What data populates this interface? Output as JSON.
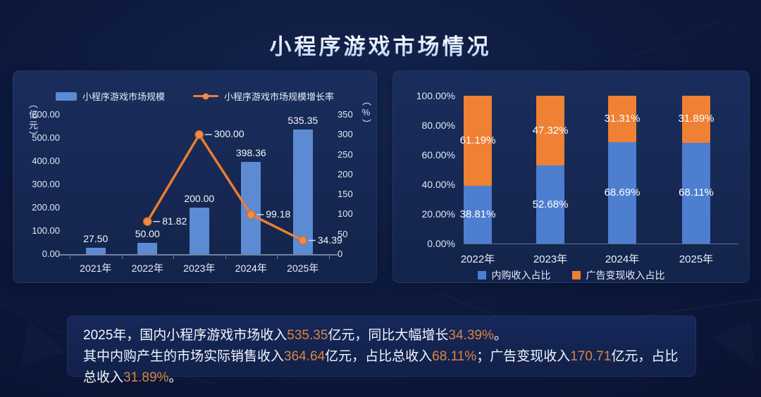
{
  "page": {
    "title": "小程序游戏市场情况"
  },
  "colors": {
    "combo_bar_blue": "#5c8bd4",
    "line_orange": "#ed7d31",
    "marker_orange": "#f08c46",
    "stack_blue": "#4d7ecf",
    "stack_orange": "#ee8133",
    "highlight_text": "#dd8440",
    "tick_text": "#dfe8f6"
  },
  "chart_data": [
    {
      "type": "bar+line",
      "categories": [
        "2021年",
        "2022年",
        "2023年",
        "2024年",
        "2025年"
      ],
      "series": [
        {
          "name": "小程序游戏市场规模",
          "type": "bar",
          "axis": "left",
          "values": [
            27.5,
            50.0,
            200.0,
            398.36,
            535.35
          ],
          "labels": [
            "27.50",
            "50.00",
            "200.00",
            "398.36",
            "535.35"
          ]
        },
        {
          "name": "小程序游戏市场规模增长率",
          "type": "line",
          "axis": "right",
          "values": [
            null,
            81.82,
            300.0,
            99.18,
            34.39
          ],
          "labels": [
            "",
            "81.82",
            "300.00",
            "99.18",
            "34.39"
          ]
        }
      ],
      "left_axis": {
        "title": "（亿元）",
        "min": 0,
        "max": 600,
        "ticks": [
          "600.00",
          "500.00",
          "400.00",
          "300.00",
          "200.00",
          "100.00",
          "0.00"
        ]
      },
      "right_axis": {
        "title": "（%）",
        "min": 0,
        "max": 350,
        "ticks": [
          "350",
          "300",
          "250",
          "200",
          "150",
          "100",
          "50",
          "0"
        ]
      },
      "legend_position": "top",
      "grid": false
    },
    {
      "type": "stacked-bar",
      "categories": [
        "2022年",
        "2023年",
        "2024年",
        "2025年"
      ],
      "series": [
        {
          "name": "内购收入占比",
          "values": [
            38.81,
            52.68,
            68.69,
            68.11
          ],
          "labels": [
            "38.81%",
            "52.68%",
            "68.69%",
            "68.11%"
          ]
        },
        {
          "name": "广告变现收入占比",
          "values": [
            61.19,
            47.32,
            31.31,
            31.89
          ],
          "labels": [
            "61.19%",
            "47.32%",
            "31.31%",
            "31.89%"
          ]
        }
      ],
      "y_axis": {
        "min": 0,
        "max": 100,
        "ticks": [
          "100.00%",
          "80.00%",
          "60.00%",
          "40.00%",
          "20.00%",
          "0.00%"
        ]
      },
      "legend_position": "bottom",
      "grid": false
    }
  ],
  "summary": {
    "lines": [
      [
        {
          "text": "2025年，国内小程序游戏市场收入",
          "hl": false
        },
        {
          "text": "535.35",
          "hl": true
        },
        {
          "text": "亿元，同比大幅增长",
          "hl": false
        },
        {
          "text": "34.39%",
          "hl": true
        },
        {
          "text": "。",
          "hl": false
        }
      ],
      [
        {
          "text": "其中内购产生的市场实际销售收入",
          "hl": false
        },
        {
          "text": "364.64",
          "hl": true
        },
        {
          "text": "亿元，占比总收入",
          "hl": false
        },
        {
          "text": "68.11%",
          "hl": true
        },
        {
          "text": "；广告变现收入",
          "hl": false
        },
        {
          "text": "170.71",
          "hl": true
        },
        {
          "text": "亿元，占比总收入",
          "hl": false
        },
        {
          "text": "31.89%",
          "hl": true
        },
        {
          "text": "。",
          "hl": false
        }
      ]
    ]
  }
}
